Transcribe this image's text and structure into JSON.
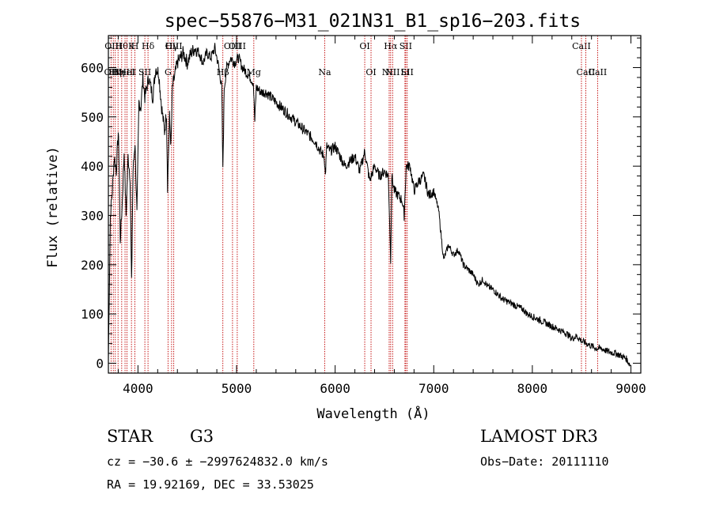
{
  "chart_data": {
    "type": "line",
    "title": "spec−55876−M31_021N31_B1_sp16−203.fits",
    "xlabel": "Wavelength (Å)",
    "ylabel": "Flux (relative)",
    "xlim": [
      3700,
      9100
    ],
    "ylim": [
      -20,
      665
    ],
    "xticks": [
      4000,
      5000,
      6000,
      7000,
      8000,
      9000
    ],
    "yticks": [
      0,
      100,
      200,
      300,
      400,
      500,
      600
    ],
    "series": [
      {
        "name": "flux",
        "x": [
          3700,
          3720,
          3740,
          3760,
          3780,
          3800,
          3810,
          3820,
          3840,
          3860,
          3880,
          3900,
          3920,
          3935,
          3950,
          3970,
          3990,
          4010,
          4030,
          4050,
          4070,
          4090,
          4110,
          4130,
          4150,
          4180,
          4210,
          4240,
          4270,
          4290,
          4300,
          4320,
          4335,
          4350,
          4370,
          4400,
          4430,
          4460,
          4500,
          4540,
          4580,
          4620,
          4660,
          4700,
          4740,
          4780,
          4820,
          4850,
          4861,
          4875,
          4900,
          4940,
          4980,
          5020,
          5060,
          5100,
          5140,
          5170,
          5185,
          5200,
          5250,
          5300,
          5350,
          5400,
          5450,
          5500,
          5550,
          5600,
          5650,
          5700,
          5750,
          5800,
          5850,
          5890,
          5900,
          5915,
          5950,
          6000,
          6050,
          6100,
          6150,
          6200,
          6250,
          6300,
          6350,
          6400,
          6450,
          6500,
          6540,
          6563,
          6575,
          6600,
          6640,
          6680,
          6700,
          6720,
          6760,
          6800,
          6850,
          6900,
          6950,
          7000,
          7050,
          7100,
          7150,
          7200,
          7250,
          7300,
          7350,
          7400,
          7450,
          7500,
          7550,
          7600,
          7650,
          7700,
          7750,
          7800,
          7850,
          7900,
          7950,
          8000,
          8050,
          8100,
          8150,
          8200,
          8250,
          8300,
          8350,
          8400,
          8450,
          8500,
          8550,
          8600,
          8650,
          8700,
          8750,
          8800,
          8850,
          8900,
          8950,
          8980,
          9000
        ],
        "values": [
          10,
          300,
          350,
          420,
          390,
          470,
          400,
          250,
          320,
          430,
          300,
          420,
          380,
          160,
          390,
          450,
          300,
          530,
          520,
          580,
          540,
          560,
          580,
          560,
          540,
          600,
          590,
          520,
          470,
          510,
          360,
          500,
          440,
          560,
          580,
          610,
          620,
          630,
          610,
          630,
          640,
          630,
          610,
          630,
          620,
          640,
          600,
          560,
          390,
          560,
          600,
          620,
          610,
          620,
          600,
          590,
          580,
          570,
          490,
          560,
          550,
          550,
          540,
          530,
          520,
          510,
          500,
          490,
          480,
          470,
          460,
          450,
          430,
          420,
          380,
          440,
          430,
          440,
          420,
          400,
          410,
          420,
          390,
          430,
          370,
          400,
          380,
          390,
          380,
          210,
          380,
          350,
          340,
          330,
          300,
          400,
          400,
          350,
          370,
          380,
          340,
          350,
          310,
          210,
          240,
          220,
          230,
          200,
          190,
          180,
          160,
          170,
          155,
          150,
          140,
          130,
          125,
          120,
          115,
          110,
          100,
          95,
          90,
          85,
          80,
          75,
          70,
          65,
          60,
          50,
          55,
          45,
          40,
          35,
          30,
          30,
          25,
          22,
          20,
          15,
          10,
          0,
          -5
        ]
      }
    ],
    "lines": [
      {
        "wl": 3727,
        "top": "",
        "bottom": "OII"
      },
      {
        "wl": 3750,
        "top": "OIII",
        "bottom": ""
      },
      {
        "wl": 3770,
        "top": "",
        "bottom": "Hη"
      },
      {
        "wl": 3798,
        "top": "",
        "bottom": "Hη"
      },
      {
        "wl": 3835,
        "top": "Hθ",
        "bottom": ""
      },
      {
        "wl": 3869,
        "top": "",
        "bottom": "NeIII"
      },
      {
        "wl": 3889,
        "top": "",
        "bottom": "HeI"
      },
      {
        "wl": 3934,
        "top": "K",
        "bottom": ""
      },
      {
        "wl": 3969,
        "top": "H",
        "bottom": ""
      },
      {
        "wl": 4070,
        "top": "",
        "bottom": "SII"
      },
      {
        "wl": 4102,
        "top": "Hδ",
        "bottom": ""
      },
      {
        "wl": 4305,
        "top": "",
        "bottom": "G"
      },
      {
        "wl": 4341,
        "top": "Hγ",
        "bottom": ""
      },
      {
        "wl": 4363,
        "top": "OIII",
        "bottom": ""
      },
      {
        "wl": 4861,
        "top": "",
        "bottom": "Hβ"
      },
      {
        "wl": 4959,
        "top": "OIII",
        "bottom": ""
      },
      {
        "wl": 5007,
        "top": "OIII",
        "bottom": ""
      },
      {
        "wl": 5175,
        "top": "",
        "bottom": "Mg"
      },
      {
        "wl": 5894,
        "top": "",
        "bottom": "Na"
      },
      {
        "wl": 6300,
        "top": "OI",
        "bottom": ""
      },
      {
        "wl": 6364,
        "top": "",
        "bottom": "OI"
      },
      {
        "wl": 6548,
        "top": "",
        "bottom": "NII"
      },
      {
        "wl": 6563,
        "top": "Hα",
        "bottom": ""
      },
      {
        "wl": 6583,
        "top": "",
        "bottom": "NII"
      },
      {
        "wl": 6708,
        "top": "",
        "bottom": "Li"
      },
      {
        "wl": 6716,
        "top": "SII",
        "bottom": ""
      },
      {
        "wl": 6731,
        "top": "",
        "bottom": "SII"
      },
      {
        "wl": 8498,
        "top": "CaII",
        "bottom": ""
      },
      {
        "wl": 8542,
        "top": "",
        "bottom": "CaII"
      },
      {
        "wl": 8662,
        "top": "",
        "bottom": "CaII"
      }
    ]
  },
  "labels": {
    "class": "STAR",
    "subclass": "G3",
    "survey": "LAMOST DR3",
    "redshift": "cz = −30.6 ± −2997624832.0 km/s",
    "obs_date": "Obs−Date: 20111110",
    "coords": "RA =  19.92169, DEC =  33.53025"
  }
}
